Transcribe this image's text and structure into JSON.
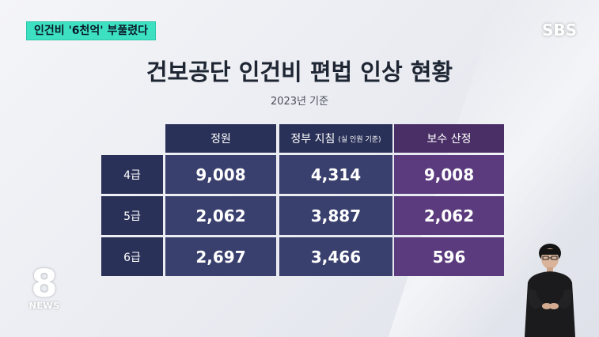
{
  "headline": "인건비 '6천억' 부풀렸다",
  "broadcaster_logo": "SBS",
  "news_logo": {
    "number": "8",
    "label": "NEWS"
  },
  "title": "건보공단 인건비 편법 인상 현황",
  "subtitle": "2023년 기준",
  "table": {
    "headers": [
      "정원",
      "정부 지침",
      "보수 산정"
    ],
    "header_note": "(실 인원 기준)",
    "rows": [
      {
        "label": "4급",
        "values": [
          "9,008",
          "4,314",
          "9,008"
        ]
      },
      {
        "label": "5급",
        "values": [
          "2,062",
          "3,887",
          "2,062"
        ]
      },
      {
        "label": "6급",
        "values": [
          "2,697",
          "3,466",
          "596"
        ]
      }
    ]
  },
  "colors": {
    "headline_bg": "#3ee0c2",
    "table_navy": "#2a3158",
    "table_purple": "#5b3b7e"
  }
}
